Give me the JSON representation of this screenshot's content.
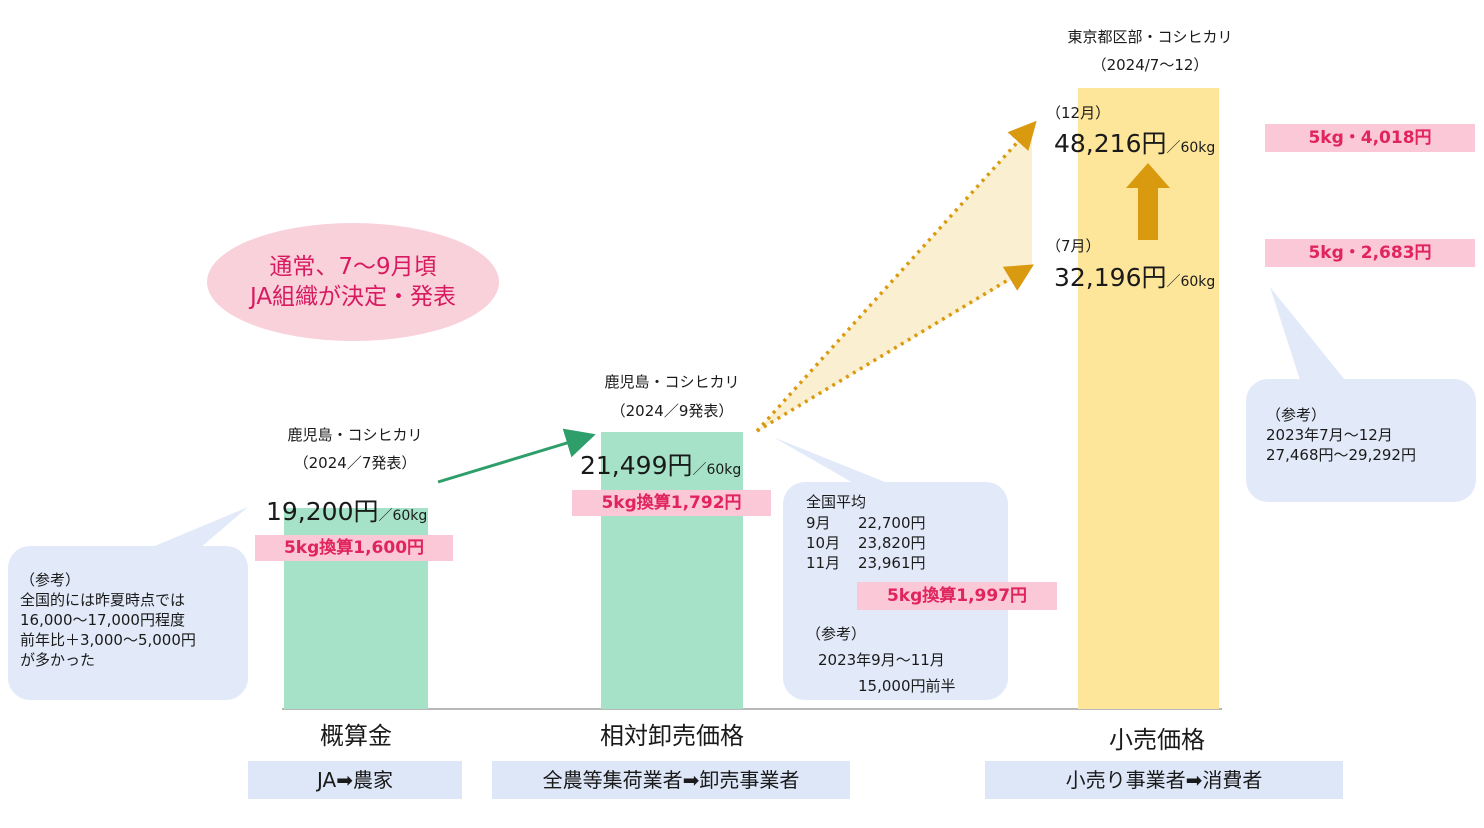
{
  "chart_data": {
    "type": "bar",
    "categories": [
      "概算金",
      "相対卸売価格",
      "小売価格"
    ],
    "unit": "円／60kg",
    "ylim": [
      0,
      50000
    ],
    "bars": [
      {
        "category": "概算金",
        "caption": "鹿児島・コシヒカリ",
        "subcaption": "（2024／7発表）",
        "value": 19200,
        "value_label": "19,200円",
        "unit_label": "／60kg",
        "per5kg_label": "5kg換算1,600円",
        "flow_label": "JA➡農家",
        "color": "#a6e2c8"
      },
      {
        "category": "相対卸売価格",
        "caption": "鹿児島・コシヒカリ",
        "subcaption": "（2024／9発表）",
        "value": 21499,
        "value_label": "21,499円",
        "unit_label": "／60kg",
        "per5kg_label": "5kg換算1,792円",
        "flow_label": "全農等集荷業者➡卸売事業者",
        "color": "#a6e2c8"
      },
      {
        "category": "小売価格",
        "caption": "東京都区部・コシヒカリ",
        "subcaption": "（2024/7～12）",
        "value": 48216,
        "value_label": "48,216円",
        "unit_label": "／60kg",
        "flow_label": "小売り事業者➡消費者",
        "color": "#fde59a",
        "points": [
          {
            "month_label": "（12月）",
            "value": 48216,
            "value_label": "48,216円",
            "unit_label": "／60kg",
            "per5kg_label": "5kg・4,018円"
          },
          {
            "month_label": "（7月）",
            "value": 32196,
            "value_label": "32,196円",
            "unit_label": "／60kg",
            "per5kg_label": "5kg・2,683円"
          }
        ]
      }
    ],
    "colors": {
      "green_arrow": "#2e9e6b",
      "gold": "#d99a10",
      "pink_text": "#e0245e",
      "bubble_bg": "#e2eaf9"
    }
  },
  "annotations": {
    "oval": "通常、7～9月頃\nJA組織が決定・発表",
    "left_bubble": "（参考）\n全国的には昨夏時点では\n16,000～17,000円程度\n前年比＋3,000～5,000円\nが多かった",
    "middle_bubble": {
      "title": "全国平均",
      "rows": [
        {
          "month": "9月",
          "value": "22,700円"
        },
        {
          "month": "10月",
          "value": "23,820円"
        },
        {
          "month": "11月",
          "value": "23,961円"
        }
      ],
      "per5kg_label": "5kg換算1,997円",
      "ref_title": "（参考）",
      "ref_period": "2023年9月～11月",
      "ref_value": "15,000円前半"
    },
    "right_bubble": "（参考）\n2023年7月～12月\n27,468円～29,292円"
  }
}
